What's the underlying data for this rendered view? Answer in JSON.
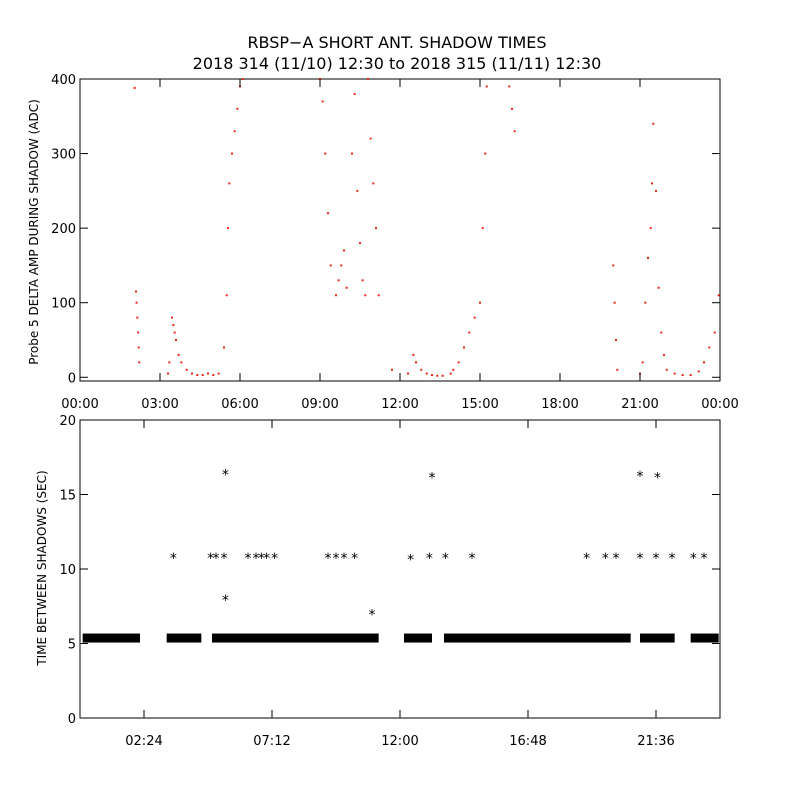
{
  "title_line1": "RBSP−A SHORT ANT. SHADOW TIMES",
  "title_line2": "2018 314 (11/10) 12:30 to 2018 315 (11/11) 12:30",
  "colors": {
    "top_points": "#e8281a",
    "bottom_points": "#000000",
    "axis": "#000000"
  },
  "chart_data": [
    {
      "type": "scatter",
      "xlabel": "",
      "ylabel": "Probe 5 DELTA AMP DURING SHADOW (ADC)",
      "xlim_hours": [
        0,
        24
      ],
      "ylim": [
        -5,
        400
      ],
      "x_tick_labels": [
        "00:00",
        "03:00",
        "06:00",
        "09:00",
        "12:00",
        "15:00",
        "18:00",
        "21:00",
        "00:00"
      ],
      "x_tick_hours": [
        0,
        3,
        6,
        9,
        12,
        15,
        18,
        21,
        24
      ],
      "y_tick_labels": [
        "0",
        "100",
        "200",
        "300",
        "400"
      ],
      "y_ticks": [
        0,
        100,
        200,
        300,
        400
      ],
      "series": [
        {
          "values": [
            [
              2.05,
              388
            ],
            [
              2.1,
              115
            ],
            [
              2.12,
              100
            ],
            [
              2.15,
              80
            ],
            [
              2.18,
              60
            ],
            [
              2.2,
              40
            ],
            [
              2.22,
              20
            ],
            [
              3.3,
              5
            ],
            [
              3.35,
              20
            ],
            [
              3.45,
              80
            ],
            [
              3.5,
              70
            ],
            [
              3.55,
              60
            ],
            [
              3.6,
              50
            ],
            [
              3.7,
              30
            ],
            [
              3.8,
              20
            ],
            [
              4.0,
              10
            ],
            [
              4.2,
              5
            ],
            [
              4.4,
              3
            ],
            [
              4.6,
              3
            ],
            [
              4.8,
              5
            ],
            [
              5.0,
              3
            ],
            [
              5.2,
              5
            ],
            [
              5.4,
              40
            ],
            [
              5.5,
              110
            ],
            [
              5.55,
              200
            ],
            [
              5.6,
              260
            ],
            [
              5.7,
              300
            ],
            [
              5.8,
              330
            ],
            [
              5.9,
              360
            ],
            [
              6.0,
              390
            ],
            [
              6.1,
              400
            ],
            [
              9.0,
              400
            ],
            [
              9.1,
              370
            ],
            [
              9.2,
              300
            ],
            [
              9.3,
              220
            ],
            [
              9.4,
              150
            ],
            [
              9.6,
              110
            ],
            [
              9.7,
              130
            ],
            [
              9.8,
              150
            ],
            [
              9.9,
              170
            ],
            [
              10.0,
              120
            ],
            [
              10.2,
              300
            ],
            [
              10.3,
              380
            ],
            [
              10.4,
              250
            ],
            [
              10.5,
              180
            ],
            [
              10.6,
              130
            ],
            [
              10.7,
              110
            ],
            [
              10.8,
              400
            ],
            [
              10.9,
              320
            ],
            [
              11.0,
              260
            ],
            [
              11.1,
              200
            ],
            [
              11.2,
              110
            ],
            [
              11.7,
              10
            ],
            [
              12.3,
              5
            ],
            [
              12.5,
              30
            ],
            [
              12.6,
              20
            ],
            [
              12.8,
              10
            ],
            [
              13.0,
              5
            ],
            [
              13.2,
              3
            ],
            [
              13.4,
              2
            ],
            [
              13.6,
              2
            ],
            [
              13.9,
              5
            ],
            [
              14.0,
              10
            ],
            [
              14.2,
              20
            ],
            [
              14.4,
              40
            ],
            [
              14.6,
              60
            ],
            [
              14.8,
              80
            ],
            [
              15.0,
              100
            ],
            [
              15.1,
              200
            ],
            [
              15.2,
              300
            ],
            [
              15.25,
              390
            ],
            [
              16.1,
              390
            ],
            [
              16.2,
              360
            ],
            [
              16.3,
              330
            ],
            [
              20.0,
              150
            ],
            [
              20.05,
              100
            ],
            [
              20.1,
              50
            ],
            [
              20.15,
              10
            ],
            [
              21.0,
              5
            ],
            [
              21.1,
              20
            ],
            [
              21.2,
              100
            ],
            [
              21.3,
              160
            ],
            [
              21.4,
              200
            ],
            [
              21.45,
              260
            ],
            [
              21.5,
              340
            ],
            [
              21.6,
              250
            ],
            [
              21.7,
              120
            ],
            [
              21.8,
              60
            ],
            [
              21.9,
              30
            ],
            [
              22.0,
              10
            ],
            [
              22.3,
              5
            ],
            [
              22.6,
              3
            ],
            [
              22.9,
              3
            ],
            [
              23.2,
              8
            ],
            [
              23.4,
              20
            ],
            [
              23.6,
              40
            ],
            [
              23.8,
              60
            ],
            [
              23.95,
              110
            ]
          ]
        }
      ]
    },
    {
      "type": "scatter",
      "xlabel": "",
      "ylabel": "TIME BETWEEN SHADOWS (SEC)",
      "xlim_hours": [
        0,
        24
      ],
      "ylim": [
        0,
        20
      ],
      "x_tick_labels": [
        "02:24",
        "07:12",
        "12:00",
        "16:48",
        "21:36"
      ],
      "x_tick_hours": [
        2.4,
        7.2,
        12.0,
        16.8,
        21.6
      ],
      "y_tick_labels": [
        "0",
        "5",
        "10",
        "15",
        "20"
      ],
      "y_ticks": [
        0,
        5,
        10,
        15,
        20
      ],
      "band_5_4_hours": [
        [
          0.1,
          2.25
        ],
        [
          3.25,
          4.55
        ],
        [
          4.95,
          11.2
        ],
        [
          12.15,
          13.2
        ],
        [
          13.65,
          20.65
        ],
        [
          21.0,
          22.3
        ],
        [
          22.9,
          23.95
        ]
      ],
      "series": [
        {
          "values": [
            [
              3.5,
              10.8
            ],
            [
              4.9,
              10.8
            ],
            [
              5.1,
              10.8
            ],
            [
              5.4,
              10.8
            ],
            [
              5.45,
              16.4
            ],
            [
              5.45,
              8.0
            ],
            [
              6.3,
              10.8
            ],
            [
              6.6,
              10.8
            ],
            [
              6.8,
              10.8
            ],
            [
              7.0,
              10.8
            ],
            [
              7.3,
              10.8
            ],
            [
              9.3,
              10.8
            ],
            [
              9.6,
              10.8
            ],
            [
              9.9,
              10.8
            ],
            [
              10.3,
              10.8
            ],
            [
              10.95,
              7.0
            ],
            [
              12.4,
              10.7
            ],
            [
              13.1,
              10.8
            ],
            [
              13.2,
              16.2
            ],
            [
              13.7,
              10.8
            ],
            [
              14.7,
              10.8
            ],
            [
              19.0,
              10.8
            ],
            [
              19.7,
              10.8
            ],
            [
              20.1,
              10.8
            ],
            [
              21.0,
              16.3
            ],
            [
              21.0,
              10.8
            ],
            [
              21.6,
              10.8
            ],
            [
              21.65,
              16.2
            ],
            [
              22.2,
              10.8
            ],
            [
              23.0,
              10.8
            ],
            [
              23.4,
              10.8
            ]
          ]
        }
      ]
    }
  ]
}
